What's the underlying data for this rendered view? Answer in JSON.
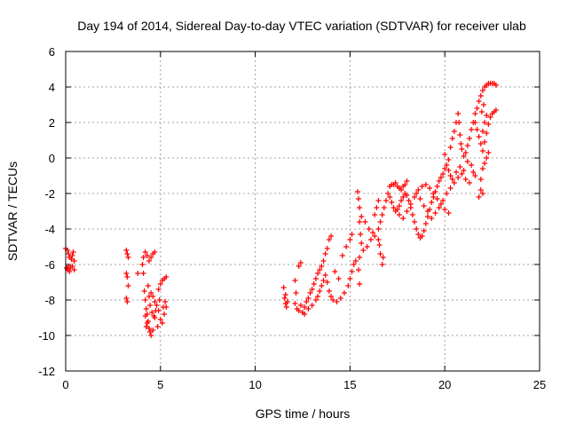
{
  "chart_data": {
    "type": "scatter",
    "title": "Day 194 of 2014, Sidereal Day-to-day VTEC variation (SDTVAR) for receiver ulab",
    "xlabel": "GPS time / hours",
    "ylabel": "SDTVAR / TECUs",
    "xlim": [
      0,
      25
    ],
    "ylim": [
      -12,
      6
    ],
    "xticks": [
      "0",
      "5",
      "10",
      "15",
      "20",
      "25"
    ],
    "yticks": [
      "-12",
      "-10",
      "-8",
      "-6",
      "-4",
      "-2",
      "0",
      "2",
      "4",
      "6"
    ],
    "grid": true,
    "marker": "+",
    "color": "#ff0000",
    "series": [
      {
        "name": "SDTVAR",
        "points": [
          [
            0.0,
            -5.1
          ],
          [
            0.1,
            -5.2
          ],
          [
            0.15,
            -5.4
          ],
          [
            0.2,
            -5.6
          ],
          [
            0.3,
            -5.7
          ],
          [
            0.35,
            -5.5
          ],
          [
            0.4,
            -5.3
          ],
          [
            0.45,
            -5.8
          ],
          [
            0.05,
            -6.2
          ],
          [
            0.1,
            -6.3
          ],
          [
            0.2,
            -6.4
          ],
          [
            0.25,
            -6.2
          ],
          [
            0.35,
            -6.1
          ],
          [
            0.45,
            -6.3
          ],
          [
            0.15,
            -6.1
          ],
          [
            3.2,
            -5.2
          ],
          [
            3.25,
            -5.4
          ],
          [
            3.3,
            -5.6
          ],
          [
            3.2,
            -6.5
          ],
          [
            3.25,
            -6.7
          ],
          [
            3.3,
            -7.2
          ],
          [
            3.2,
            -7.9
          ],
          [
            3.25,
            -8.1
          ],
          [
            3.8,
            -6.5
          ],
          [
            4.1,
            -5.6
          ],
          [
            4.2,
            -5.3
          ],
          [
            4.3,
            -5.5
          ],
          [
            4.4,
            -5.8
          ],
          [
            4.5,
            -5.6
          ],
          [
            4.6,
            -5.4
          ],
          [
            4.7,
            -5.3
          ],
          [
            4.05,
            -6.0
          ],
          [
            4.1,
            -6.5
          ],
          [
            4.15,
            -7.5
          ],
          [
            4.2,
            -8.0
          ],
          [
            4.25,
            -8.5
          ],
          [
            4.3,
            -8.8
          ],
          [
            4.35,
            -9.2
          ],
          [
            4.4,
            -9.6
          ],
          [
            4.45,
            -9.8
          ],
          [
            4.5,
            -10.0
          ],
          [
            4.6,
            -9.7
          ],
          [
            4.7,
            -9.0
          ],
          [
            4.4,
            -7.8
          ],
          [
            4.5,
            -7.6
          ],
          [
            4.6,
            -7.8
          ],
          [
            4.7,
            -8.1
          ],
          [
            4.8,
            -8.3
          ],
          [
            4.9,
            -8.6
          ],
          [
            5.0,
            -9.1
          ],
          [
            5.1,
            -9.3
          ],
          [
            5.2,
            -8.8
          ],
          [
            5.3,
            -8.4
          ],
          [
            5.25,
            -8.1
          ],
          [
            4.9,
            -7.4
          ],
          [
            5.0,
            -7.1
          ],
          [
            5.1,
            -6.9
          ],
          [
            5.2,
            -6.8
          ],
          [
            5.3,
            -6.7
          ],
          [
            4.2,
            -8.9
          ],
          [
            4.3,
            -9.3
          ],
          [
            4.55,
            -8.7
          ],
          [
            4.65,
            -8.9
          ],
          [
            4.85,
            -9.5
          ],
          [
            4.95,
            -8.0
          ],
          [
            5.15,
            -8.4
          ],
          [
            4.35,
            -7.2
          ],
          [
            4.45,
            -8.3
          ],
          [
            4.75,
            -8.6
          ],
          [
            4.25,
            -9.5
          ],
          [
            11.5,
            -7.3
          ],
          [
            11.55,
            -7.9
          ],
          [
            11.6,
            -8.2
          ],
          [
            11.65,
            -8.4
          ],
          [
            11.7,
            -8.1
          ],
          [
            11.6,
            -7.7
          ],
          [
            12.1,
            -6.9
          ],
          [
            12.15,
            -7.6
          ],
          [
            12.1,
            -8.2
          ],
          [
            12.2,
            -8.5
          ],
          [
            12.3,
            -8.6
          ],
          [
            12.4,
            -8.3
          ],
          [
            12.3,
            -6.1
          ],
          [
            12.4,
            -5.9
          ],
          [
            12.5,
            -8.7
          ],
          [
            12.6,
            -8.4
          ],
          [
            12.7,
            -8.1
          ],
          [
            12.8,
            -7.9
          ],
          [
            12.9,
            -7.6
          ],
          [
            13.0,
            -7.4
          ],
          [
            13.1,
            -7.1
          ],
          [
            13.2,
            -6.8
          ],
          [
            13.3,
            -6.5
          ],
          [
            13.4,
            -6.3
          ],
          [
            13.5,
            -6.1
          ],
          [
            13.6,
            -5.8
          ],
          [
            13.7,
            -5.4
          ],
          [
            13.8,
            -5.1
          ],
          [
            13.9,
            -4.6
          ],
          [
            14.0,
            -4.4
          ],
          [
            12.6,
            -8.8
          ],
          [
            12.8,
            -8.5
          ],
          [
            13.0,
            -8.3
          ],
          [
            13.2,
            -8.0
          ],
          [
            13.3,
            -7.8
          ],
          [
            13.4,
            -7.5
          ],
          [
            13.5,
            -7.2
          ],
          [
            13.6,
            -6.9
          ],
          [
            13.7,
            -6.6
          ],
          [
            13.8,
            -7.0
          ],
          [
            13.9,
            -7.5
          ],
          [
            14.0,
            -7.8
          ],
          [
            14.1,
            -8.0
          ],
          [
            14.3,
            -8.1
          ],
          [
            14.5,
            -7.9
          ],
          [
            14.7,
            -7.6
          ],
          [
            14.9,
            -7.2
          ],
          [
            15.0,
            -6.8
          ],
          [
            15.1,
            -6.4
          ],
          [
            15.2,
            -6.0
          ],
          [
            15.3,
            -5.8
          ],
          [
            14.2,
            -6.4
          ],
          [
            14.4,
            -6.8
          ],
          [
            14.6,
            -5.5
          ],
          [
            14.8,
            -5.0
          ],
          [
            15.0,
            -4.6
          ],
          [
            15.1,
            -4.3
          ],
          [
            15.4,
            -1.9
          ],
          [
            15.45,
            -2.3
          ],
          [
            15.5,
            -2.8
          ],
          [
            15.5,
            -3.6
          ],
          [
            15.55,
            -4.3
          ],
          [
            15.6,
            -4.8
          ],
          [
            15.5,
            -5.6
          ],
          [
            15.45,
            -6.3
          ],
          [
            15.5,
            -7.1
          ],
          [
            15.6,
            -3.3
          ],
          [
            15.8,
            -3.6
          ],
          [
            16.0,
            -4.0
          ],
          [
            16.2,
            -4.2
          ],
          [
            15.7,
            -5.2
          ],
          [
            15.9,
            -5.0
          ],
          [
            16.1,
            -4.6
          ],
          [
            16.3,
            -4.4
          ],
          [
            16.5,
            -4.0
          ],
          [
            16.6,
            -3.6
          ],
          [
            16.7,
            -3.2
          ],
          [
            16.8,
            -2.8
          ],
          [
            16.9,
            -2.4
          ],
          [
            17.0,
            -2.0
          ],
          [
            16.3,
            -3.2
          ],
          [
            16.4,
            -2.8
          ],
          [
            16.5,
            -2.4
          ],
          [
            16.6,
            -5.4
          ],
          [
            16.7,
            -6.0
          ],
          [
            16.75,
            -5.6
          ],
          [
            16.5,
            -4.6
          ],
          [
            16.55,
            -4.9
          ],
          [
            17.1,
            -1.6
          ],
          [
            17.2,
            -1.5
          ],
          [
            17.3,
            -1.5
          ],
          [
            17.4,
            -1.4
          ],
          [
            17.5,
            -1.6
          ],
          [
            17.6,
            -1.7
          ],
          [
            17.7,
            -1.8
          ],
          [
            17.8,
            -1.6
          ],
          [
            17.9,
            -1.5
          ],
          [
            18.0,
            -1.3
          ],
          [
            17.1,
            -2.2
          ],
          [
            17.2,
            -2.5
          ],
          [
            17.3,
            -2.8
          ],
          [
            17.4,
            -3.0
          ],
          [
            17.5,
            -2.9
          ],
          [
            17.6,
            -2.7
          ],
          [
            17.7,
            -2.4
          ],
          [
            17.8,
            -2.2
          ],
          [
            17.9,
            -2.0
          ],
          [
            18.0,
            -2.1
          ],
          [
            18.1,
            -2.4
          ],
          [
            18.2,
            -2.8
          ],
          [
            18.3,
            -3.2
          ],
          [
            18.4,
            -3.6
          ],
          [
            18.5,
            -4.0
          ],
          [
            18.6,
            -4.3
          ],
          [
            18.7,
            -4.5
          ],
          [
            18.8,
            -4.4
          ],
          [
            18.9,
            -4.1
          ],
          [
            19.0,
            -3.7
          ],
          [
            19.1,
            -3.3
          ],
          [
            19.2,
            -2.9
          ],
          [
            19.3,
            -2.5
          ],
          [
            19.4,
            -2.2
          ],
          [
            19.5,
            -1.9
          ],
          [
            19.6,
            -1.6
          ],
          [
            19.7,
            -1.3
          ],
          [
            19.8,
            -1.1
          ],
          [
            19.9,
            -0.9
          ],
          [
            20.0,
            -0.6
          ],
          [
            20.1,
            -0.4
          ],
          [
            20.2,
            -0.7
          ],
          [
            20.3,
            -1.0
          ],
          [
            20.4,
            -1.2
          ],
          [
            17.6,
            -3.2
          ],
          [
            17.8,
            -3.4
          ],
          [
            18.0,
            -3.0
          ],
          [
            18.2,
            -2.6
          ],
          [
            18.4,
            -2.2
          ],
          [
            18.6,
            -1.8
          ],
          [
            18.8,
            -1.6
          ],
          [
            19.0,
            -1.5
          ],
          [
            19.2,
            -1.7
          ],
          [
            19.4,
            -2.0
          ],
          [
            19.6,
            -2.3
          ],
          [
            19.8,
            -2.6
          ],
          [
            20.0,
            -2.9
          ],
          [
            20.2,
            -3.1
          ],
          [
            18.5,
            -2.0
          ],
          [
            18.7,
            -2.3
          ],
          [
            18.9,
            -2.7
          ],
          [
            19.1,
            -3.0
          ],
          [
            19.3,
            -3.4
          ],
          [
            19.5,
            -3.1
          ],
          [
            19.7,
            -2.8
          ],
          [
            19.9,
            -2.4
          ],
          [
            20.1,
            -2.0
          ],
          [
            20.3,
            -1.7
          ],
          [
            20.5,
            -1.4
          ],
          [
            20.7,
            -1.1
          ],
          [
            20.9,
            -0.9
          ],
          [
            21.1,
            -1.2
          ],
          [
            21.3,
            -1.4
          ],
          [
            21.5,
            -0.8
          ],
          [
            20.0,
            0.2
          ],
          [
            20.2,
            -0.1
          ],
          [
            20.3,
            0.6
          ],
          [
            20.4,
            1.1
          ],
          [
            20.5,
            1.5
          ],
          [
            20.6,
            2.0
          ],
          [
            20.7,
            2.5
          ],
          [
            20.75,
            2.0
          ],
          [
            20.8,
            1.3
          ],
          [
            20.85,
            0.8
          ],
          [
            20.9,
            0.5
          ],
          [
            21.0,
            0.1
          ],
          [
            21.1,
            0.3
          ],
          [
            21.2,
            0.7
          ],
          [
            21.3,
            1.1
          ],
          [
            21.4,
            1.6
          ],
          [
            21.5,
            2.0
          ],
          [
            21.6,
            2.5
          ],
          [
            21.7,
            2.8
          ],
          [
            21.8,
            3.2
          ],
          [
            21.9,
            3.5
          ],
          [
            22.0,
            3.8
          ],
          [
            22.1,
            4.0
          ],
          [
            22.2,
            4.1
          ],
          [
            22.3,
            4.2
          ],
          [
            22.4,
            4.2
          ],
          [
            22.5,
            4.2
          ],
          [
            22.6,
            4.2
          ],
          [
            22.7,
            4.1
          ],
          [
            21.6,
            2.0
          ],
          [
            21.7,
            1.6
          ],
          [
            21.8,
            1.2
          ],
          [
            21.9,
            0.8
          ],
          [
            22.0,
            0.4
          ],
          [
            22.1,
            0.9
          ],
          [
            22.2,
            1.4
          ],
          [
            22.3,
            1.9
          ],
          [
            22.4,
            2.3
          ],
          [
            22.5,
            2.5
          ],
          [
            22.6,
            2.6
          ],
          [
            22.7,
            2.7
          ],
          [
            21.9,
            -1.8
          ],
          [
            22.0,
            -2.0
          ],
          [
            21.8,
            -2.2
          ],
          [
            21.6,
            -1.0
          ],
          [
            21.4,
            -0.4
          ],
          [
            21.2,
            -0.2
          ],
          [
            20.6,
            -0.8
          ],
          [
            20.8,
            -0.5
          ],
          [
            21.0,
            -0.7
          ],
          [
            21.9,
            -1.2
          ],
          [
            22.0,
            -0.6
          ],
          [
            22.1,
            -0.3
          ],
          [
            22.2,
            0.0
          ],
          [
            22.3,
            0.3
          ],
          [
            22.0,
            1.5
          ],
          [
            22.1,
            2.0
          ],
          [
            22.2,
            2.4
          ],
          [
            22.05,
            3.0
          ],
          [
            21.95,
            2.6
          ]
        ]
      }
    ]
  }
}
